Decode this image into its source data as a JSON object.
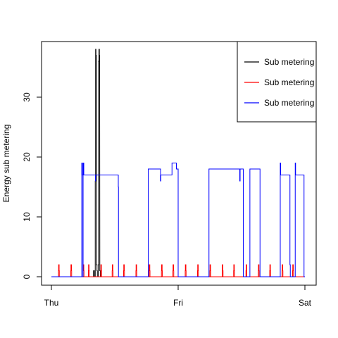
{
  "chart_data": {
    "type": "line",
    "title": "",
    "xlabel": "",
    "ylabel": "Energy sub metering",
    "xlim": [
      0,
      2880
    ],
    "ylim": [
      -1,
      39
    ],
    "x_ticks": [
      {
        "value": 0,
        "label": "Thu"
      },
      {
        "value": 1440,
        "label": "Fri"
      },
      {
        "value": 2880,
        "label": "Sat"
      }
    ],
    "y_ticks": [
      0,
      10,
      20,
      30
    ],
    "grid": false,
    "legend_position": "top-right",
    "series": [
      {
        "name": "Sub metering",
        "color": "#000000",
        "points": [
          [
            0,
            0
          ],
          [
            478,
            0
          ],
          [
            478,
            1
          ],
          [
            488,
            1
          ],
          [
            488,
            0
          ],
          [
            498,
            0
          ],
          [
            498,
            16
          ],
          [
            502,
            16
          ],
          [
            502,
            38
          ],
          [
            506,
            38
          ],
          [
            506,
            37
          ],
          [
            510,
            37
          ],
          [
            512,
            2
          ],
          [
            518,
            2
          ],
          [
            518,
            1
          ],
          [
            522,
            1
          ],
          [
            522,
            0
          ],
          [
            532,
            0
          ],
          [
            532,
            2
          ],
          [
            536,
            2
          ],
          [
            536,
            36
          ],
          [
            540,
            36
          ],
          [
            540,
            38
          ],
          [
            545,
            38
          ],
          [
            545,
            37
          ],
          [
            548,
            37
          ],
          [
            550,
            1
          ],
          [
            556,
            1
          ],
          [
            556,
            0
          ],
          [
            2880,
            0
          ]
        ]
      },
      {
        "name": "Sub metering",
        "color": "#FF0000",
        "points": [
          [
            0,
            0
          ],
          [
            80,
            0
          ],
          [
            80,
            1
          ],
          [
            82,
            1
          ],
          [
            82,
            2
          ],
          [
            88,
            2
          ],
          [
            88,
            1
          ],
          [
            90,
            1
          ],
          [
            90,
            0
          ],
          [
            220,
            0
          ],
          [
            220,
            1
          ],
          [
            222,
            1
          ],
          [
            222,
            2
          ],
          [
            228,
            2
          ],
          [
            228,
            1
          ],
          [
            230,
            1
          ],
          [
            230,
            0
          ],
          [
            360,
            0
          ],
          [
            360,
            1
          ],
          [
            362,
            1
          ],
          [
            362,
            2
          ],
          [
            368,
            2
          ],
          [
            368,
            1
          ],
          [
            370,
            1
          ],
          [
            370,
            0
          ],
          [
            420,
            0
          ],
          [
            420,
            1
          ],
          [
            422,
            1
          ],
          [
            422,
            2
          ],
          [
            428,
            2
          ],
          [
            428,
            1
          ],
          [
            430,
            1
          ],
          [
            430,
            0
          ],
          [
            560,
            0
          ],
          [
            560,
            1
          ],
          [
            562,
            1
          ],
          [
            562,
            2
          ],
          [
            568,
            2
          ],
          [
            568,
            1
          ],
          [
            570,
            1
          ],
          [
            570,
            0
          ],
          [
            690,
            0
          ],
          [
            690,
            1
          ],
          [
            692,
            1
          ],
          [
            692,
            2
          ],
          [
            698,
            2
          ],
          [
            698,
            1
          ],
          [
            700,
            1
          ],
          [
            700,
            0
          ],
          [
            820,
            0
          ],
          [
            820,
            1
          ],
          [
            822,
            1
          ],
          [
            822,
            2
          ],
          [
            828,
            2
          ],
          [
            828,
            1
          ],
          [
            830,
            1
          ],
          [
            830,
            0
          ],
          [
            960,
            0
          ],
          [
            960,
            1
          ],
          [
            962,
            1
          ],
          [
            962,
            2
          ],
          [
            968,
            2
          ],
          [
            968,
            1
          ],
          [
            970,
            1
          ],
          [
            970,
            0
          ],
          [
            1110,
            0
          ],
          [
            1110,
            1
          ],
          [
            1112,
            1
          ],
          [
            1112,
            2
          ],
          [
            1118,
            2
          ],
          [
            1118,
            1
          ],
          [
            1120,
            1
          ],
          [
            1120,
            0
          ],
          [
            1250,
            0
          ],
          [
            1250,
            1
          ],
          [
            1252,
            1
          ],
          [
            1252,
            2
          ],
          [
            1258,
            2
          ],
          [
            1258,
            1
          ],
          [
            1260,
            1
          ],
          [
            1260,
            0
          ],
          [
            1380,
            0
          ],
          [
            1380,
            1
          ],
          [
            1382,
            1
          ],
          [
            1382,
            2
          ],
          [
            1388,
            2
          ],
          [
            1388,
            1
          ],
          [
            1390,
            1
          ],
          [
            1390,
            0
          ],
          [
            1520,
            0
          ],
          [
            1520,
            1
          ],
          [
            1522,
            1
          ],
          [
            1522,
            2
          ],
          [
            1528,
            2
          ],
          [
            1528,
            1
          ],
          [
            1530,
            1
          ],
          [
            1530,
            0
          ],
          [
            1660,
            0
          ],
          [
            1660,
            1
          ],
          [
            1662,
            1
          ],
          [
            1662,
            2
          ],
          [
            1668,
            2
          ],
          [
            1668,
            1
          ],
          [
            1670,
            1
          ],
          [
            1670,
            0
          ],
          [
            1800,
            0
          ],
          [
            1800,
            1
          ],
          [
            1802,
            1
          ],
          [
            1802,
            2
          ],
          [
            1808,
            2
          ],
          [
            1808,
            1
          ],
          [
            1810,
            1
          ],
          [
            1810,
            0
          ],
          [
            1940,
            0
          ],
          [
            1940,
            1
          ],
          [
            1942,
            1
          ],
          [
            1942,
            2
          ],
          [
            1948,
            2
          ],
          [
            1948,
            1
          ],
          [
            1950,
            1
          ],
          [
            1950,
            0
          ],
          [
            2070,
            0
          ],
          [
            2070,
            1
          ],
          [
            2072,
            1
          ],
          [
            2072,
            2
          ],
          [
            2078,
            2
          ],
          [
            2078,
            1
          ],
          [
            2080,
            1
          ],
          [
            2080,
            0
          ],
          [
            2210,
            0
          ],
          [
            2210,
            1
          ],
          [
            2212,
            1
          ],
          [
            2212,
            2
          ],
          [
            2218,
            2
          ],
          [
            2218,
            1
          ],
          [
            2220,
            1
          ],
          [
            2220,
            0
          ],
          [
            2350,
            0
          ],
          [
            2350,
            1
          ],
          [
            2352,
            1
          ],
          [
            2352,
            2
          ],
          [
            2358,
            2
          ],
          [
            2358,
            1
          ],
          [
            2360,
            1
          ],
          [
            2360,
            0
          ],
          [
            2480,
            0
          ],
          [
            2480,
            1
          ],
          [
            2482,
            1
          ],
          [
            2482,
            2
          ],
          [
            2488,
            2
          ],
          [
            2488,
            1
          ],
          [
            2490,
            1
          ],
          [
            2490,
            0
          ],
          [
            2620,
            0
          ],
          [
            2620,
            1
          ],
          [
            2622,
            1
          ],
          [
            2622,
            2
          ],
          [
            2628,
            2
          ],
          [
            2628,
            1
          ],
          [
            2630,
            1
          ],
          [
            2630,
            0
          ],
          [
            2740,
            0
          ],
          [
            2740,
            1
          ],
          [
            2742,
            1
          ],
          [
            2742,
            2
          ],
          [
            2748,
            2
          ],
          [
            2748,
            1
          ],
          [
            2750,
            1
          ],
          [
            2750,
            0
          ],
          [
            2880,
            0
          ]
        ]
      },
      {
        "name": "Sub metering",
        "color": "#0000FF",
        "points": [
          [
            0,
            0
          ],
          [
            345,
            0
          ],
          [
            345,
            19
          ],
          [
            350,
            19
          ],
          [
            350,
            17
          ],
          [
            358,
            17
          ],
          [
            358,
            0
          ],
          [
            360,
            0
          ],
          [
            360,
            19
          ],
          [
            368,
            19
          ],
          [
            368,
            17
          ],
          [
            500,
            17
          ],
          [
            500,
            16
          ],
          [
            502,
            16
          ],
          [
            502,
            17
          ],
          [
            760,
            17
          ],
          [
            760,
            15
          ],
          [
            762,
            15
          ],
          [
            762,
            0
          ],
          [
            1100,
            0
          ],
          [
            1100,
            18
          ],
          [
            1240,
            18
          ],
          [
            1240,
            16
          ],
          [
            1244,
            16
          ],
          [
            1244,
            17
          ],
          [
            1370,
            17
          ],
          [
            1370,
            19
          ],
          [
            1420,
            19
          ],
          [
            1420,
            18
          ],
          [
            1440,
            18
          ],
          [
            1440,
            0
          ],
          [
            1790,
            0
          ],
          [
            1790,
            18
          ],
          [
            2140,
            18
          ],
          [
            2140,
            16
          ],
          [
            2144,
            16
          ],
          [
            2144,
            18
          ],
          [
            2180,
            18
          ],
          [
            2180,
            0
          ],
          [
            2255,
            0
          ],
          [
            2255,
            18
          ],
          [
            2370,
            18
          ],
          [
            2370,
            0
          ],
          [
            2600,
            0
          ],
          [
            2600,
            19
          ],
          [
            2604,
            19
          ],
          [
            2604,
            17
          ],
          [
            2710,
            17
          ],
          [
            2710,
            2
          ],
          [
            2714,
            2
          ],
          [
            2714,
            0
          ],
          [
            2770,
            0
          ],
          [
            2770,
            19
          ],
          [
            2774,
            19
          ],
          [
            2774,
            17
          ],
          [
            2870,
            17
          ],
          [
            2870,
            0
          ],
          [
            2880,
            0
          ]
        ]
      }
    ]
  }
}
